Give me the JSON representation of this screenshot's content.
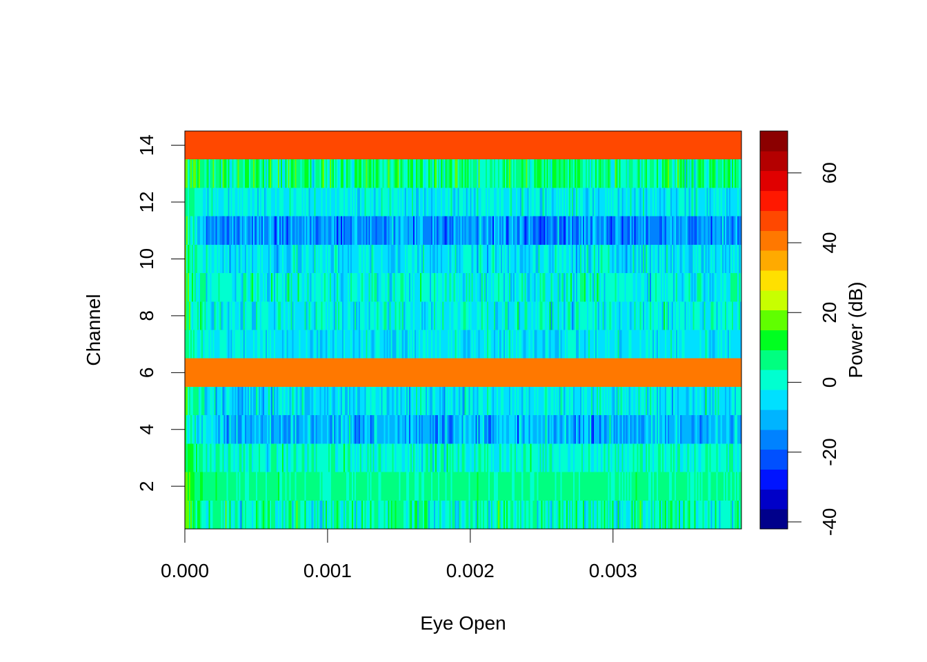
{
  "chart_data": {
    "type": "heatmap",
    "title": "",
    "xlabel": "Eye Open",
    "ylabel": "Channel",
    "xlim": [
      0.0,
      0.0039
    ],
    "ylim": [
      0.5,
      14.5
    ],
    "x_ticks": [
      0.0,
      0.001,
      0.002,
      0.003
    ],
    "x_tick_labels": [
      "0.000",
      "0.001",
      "0.002",
      "0.003"
    ],
    "y_ticks": [
      2,
      4,
      6,
      8,
      10,
      12,
      14
    ],
    "y_tick_labels": [
      "2",
      "4",
      "6",
      "8",
      "10",
      "12",
      "14"
    ],
    "n_time_bins": 400,
    "channels": [
      {
        "channel": 1,
        "mean_db": 2,
        "noise_db": 6,
        "start_db": 14
      },
      {
        "channel": 2,
        "mean_db": 5,
        "noise_db": 2,
        "start_db": 18
      },
      {
        "channel": 3,
        "mean_db": 1,
        "noise_db": 4,
        "start_db": 14
      },
      {
        "channel": 4,
        "mean_db": -10,
        "noise_db": 6,
        "start_db": 10
      },
      {
        "channel": 5,
        "mean_db": -4,
        "noise_db": 5,
        "start_db": 10
      },
      {
        "channel": 6,
        "mean_db": 42,
        "noise_db": 0,
        "start_db": 42
      },
      {
        "channel": 7,
        "mean_db": -4,
        "noise_db": 4,
        "start_db": 10
      },
      {
        "channel": 8,
        "mean_db": -2,
        "noise_db": 5,
        "start_db": 10
      },
      {
        "channel": 9,
        "mean_db": -1,
        "noise_db": 5,
        "start_db": 12
      },
      {
        "channel": 10,
        "mean_db": -4,
        "noise_db": 5,
        "start_db": 12
      },
      {
        "channel": 11,
        "mean_db": -14,
        "noise_db": 6,
        "start_db": 12
      },
      {
        "channel": 12,
        "mean_db": -3,
        "noise_db": 4,
        "start_db": 12
      },
      {
        "channel": 13,
        "mean_db": 6,
        "noise_db": 6,
        "start_db": 16
      },
      {
        "channel": 14,
        "mean_db": 48,
        "noise_db": 0,
        "start_db": 48
      }
    ],
    "colorbar": {
      "label": "Power (dB)",
      "min": -42,
      "max": 72,
      "ticks": [
        -40,
        -20,
        0,
        20,
        40,
        60
      ],
      "tick_labels": [
        "-40",
        "-20",
        "0",
        "20",
        "40",
        "60"
      ],
      "colors": [
        "#00008B",
        "#0000C8",
        "#0014FF",
        "#0050FF",
        "#0082FF",
        "#00B4FF",
        "#00E0FF",
        "#00FFD0",
        "#00FF80",
        "#00FF20",
        "#60FF00",
        "#C8FF00",
        "#FFE000",
        "#FFAA00",
        "#FF7800",
        "#FF4800",
        "#FF1800",
        "#E00000",
        "#B40000",
        "#8B0000"
      ]
    },
    "grid": false,
    "legend": "right"
  }
}
